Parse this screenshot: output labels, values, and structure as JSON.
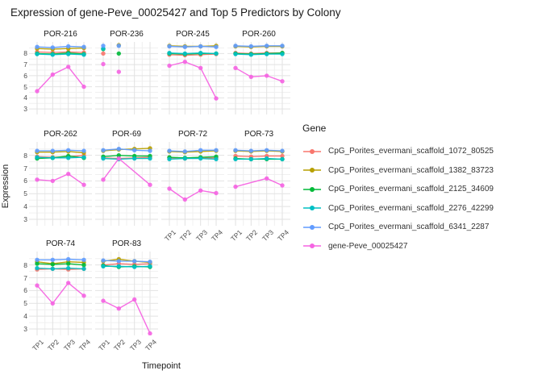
{
  "title": "Expression of gene-Peve_00025427 and Top 5 Predictors by Colony",
  "x_axis": {
    "title": "Timepoint",
    "ticks": [
      "TP1",
      "TP2",
      "TP3",
      "TP4"
    ]
  },
  "y_axis": {
    "title": "Expression",
    "ticks": [
      8,
      7,
      6,
      5,
      4,
      3
    ]
  },
  "legend": {
    "title": "Gene"
  },
  "chart_data": {
    "type": "line",
    "x": [
      "TP1",
      "TP2",
      "TP3",
      "TP4"
    ],
    "ylim": [
      2.5,
      9.05
    ],
    "y_major_gridlines": [
      3,
      4,
      5,
      6,
      7,
      8
    ],
    "grid": true,
    "legend_position": "right",
    "facet_by": "Colony",
    "series": [
      {
        "name": "CpG_Porites_evermani_scaffold_1072_80525",
        "color": "#F8766D"
      },
      {
        "name": "CpG_Porites_evermani_scaffold_1382_83723",
        "color": "#B79F00"
      },
      {
        "name": "CpG_Porites_evermani_scaffold_2125_34609",
        "color": "#00BA38"
      },
      {
        "name": "CpG_Porites_evermani_scaffold_2276_42299",
        "color": "#00BFC4"
      },
      {
        "name": "CpG_Porites_evermani_scaffold_6341_2287",
        "color": "#619CFF"
      },
      {
        "name": "gene-Peve_00025427",
        "color": "#F564E2"
      }
    ],
    "facets": [
      {
        "colony": "POR-216",
        "row": 1,
        "x_labels": false,
        "points_only": false,
        "values": {
          "CpG_Porites_evermani_scaffold_1072_80525": [
            8.15,
            8.1,
            8.15,
            8.1
          ],
          "CpG_Porites_evermani_scaffold_1382_83723": [
            8.45,
            8.4,
            8.45,
            8.5
          ],
          "CpG_Porites_evermani_scaffold_2125_34609": [
            8.0,
            7.95,
            8.05,
            7.95
          ],
          "CpG_Porites_evermani_scaffold_2276_42299": [
            7.95,
            7.9,
            7.95,
            7.9
          ],
          "CpG_Porites_evermani_scaffold_6341_2287": [
            8.6,
            8.55,
            8.65,
            8.6
          ],
          "gene-Peve_00025427": [
            4.6,
            6.1,
            6.8,
            5.0
          ]
        }
      },
      {
        "colony": "POR-236",
        "row": 1,
        "x_labels": false,
        "points_only": true,
        "values": {
          "CpG_Porites_evermani_scaffold_1072_80525": [
            8.0,
            null,
            null,
            null
          ],
          "CpG_Porites_evermani_scaffold_1382_83723": [
            null,
            8.75,
            null,
            null
          ],
          "CpG_Porites_evermani_scaffold_2125_34609": [
            8.4,
            8.0,
            null,
            null
          ],
          "CpG_Porites_evermani_scaffold_2276_42299": [
            8.45,
            null,
            null,
            null
          ],
          "CpG_Porites_evermani_scaffold_6341_2287": [
            8.7,
            8.7,
            null,
            null
          ],
          "gene-Peve_00025427": [
            7.05,
            6.35,
            null,
            null
          ]
        }
      },
      {
        "colony": "POR-245",
        "row": 1,
        "x_labels": false,
        "points_only": false,
        "values": {
          "CpG_Porites_evermani_scaffold_1072_80525": [
            7.9,
            7.85,
            7.9,
            7.95
          ],
          "CpG_Porites_evermani_scaffold_1382_83723": [
            8.7,
            8.65,
            8.65,
            8.7
          ],
          "CpG_Porites_evermani_scaffold_2125_34609": [
            8.0,
            7.95,
            8.0,
            8.0
          ],
          "CpG_Porites_evermani_scaffold_2276_42299": [
            8.05,
            8.0,
            8.05,
            8.0
          ],
          "CpG_Porites_evermani_scaffold_6341_2287": [
            8.65,
            8.6,
            8.65,
            8.6
          ],
          "gene-Peve_00025427": [
            6.9,
            7.25,
            6.7,
            3.95
          ]
        }
      },
      {
        "colony": "POR-260",
        "row": 1,
        "x_labels": false,
        "points_only": false,
        "values": {
          "CpG_Porites_evermani_scaffold_1072_80525": [
            8.05,
            8.0,
            8.05,
            8.05
          ],
          "CpG_Porites_evermani_scaffold_1382_83723": [
            8.65,
            8.6,
            8.65,
            8.65
          ],
          "CpG_Porites_evermani_scaffold_2125_34609": [
            8.0,
            7.95,
            8.0,
            8.05
          ],
          "CpG_Porites_evermani_scaffold_2276_42299": [
            7.95,
            7.9,
            7.95,
            7.95
          ],
          "CpG_Porites_evermani_scaffold_6341_2287": [
            8.7,
            8.65,
            8.7,
            8.7
          ],
          "gene-Peve_00025427": [
            6.7,
            5.9,
            6.0,
            5.5
          ]
        }
      },
      {
        "colony": "POR-262",
        "row": 2,
        "x_labels": false,
        "points_only": false,
        "values": {
          "CpG_Porites_evermani_scaffold_1072_80525": [
            7.9,
            7.85,
            7.9,
            8.0
          ],
          "CpG_Porites_evermani_scaffold_1382_83723": [
            8.25,
            8.25,
            8.3,
            8.2
          ],
          "CpG_Porites_evermani_scaffold_2125_34609": [
            7.75,
            7.8,
            7.95,
            7.8
          ],
          "CpG_Porites_evermani_scaffold_2276_42299": [
            7.85,
            7.8,
            7.8,
            7.85
          ],
          "CpG_Porites_evermani_scaffold_6341_2287": [
            8.35,
            8.35,
            8.4,
            8.35
          ],
          "gene-Peve_00025427": [
            6.1,
            6.0,
            6.55,
            5.7
          ]
        }
      },
      {
        "colony": "POR-69",
        "row": 2,
        "x_labels": false,
        "points_only": false,
        "values": {
          "CpG_Porites_evermani_scaffold_1072_80525": [
            7.8,
            7.75,
            7.8,
            7.85
          ],
          "CpG_Porites_evermani_scaffold_1382_83723": [
            8.35,
            8.45,
            8.5,
            8.55
          ],
          "CpG_Porites_evermani_scaffold_2125_34609": [
            7.9,
            8.0,
            7.95,
            7.95
          ],
          "CpG_Porites_evermani_scaffold_2276_42299": [
            7.75,
            7.7,
            7.75,
            7.75
          ],
          "CpG_Porites_evermani_scaffold_6341_2287": [
            8.4,
            8.5,
            8.4,
            8.35
          ],
          "gene-Peve_00025427": [
            6.1,
            7.75,
            null,
            5.7
          ]
        }
      },
      {
        "colony": "POR-72",
        "row": 2,
        "x_labels": true,
        "points_only": false,
        "values": {
          "CpG_Porites_evermani_scaffold_1072_80525": [
            7.8,
            7.75,
            7.8,
            7.8
          ],
          "CpG_Porites_evermani_scaffold_1382_83723": [
            8.3,
            8.25,
            8.3,
            8.35
          ],
          "CpG_Porites_evermani_scaffold_2125_34609": [
            7.85,
            7.8,
            7.85,
            7.9
          ],
          "CpG_Porites_evermani_scaffold_2276_42299": [
            7.7,
            7.75,
            7.75,
            7.7
          ],
          "CpG_Porites_evermani_scaffold_6341_2287": [
            8.35,
            8.3,
            8.4,
            8.4
          ],
          "gene-Peve_00025427": [
            5.4,
            4.55,
            5.25,
            5.05
          ]
        }
      },
      {
        "colony": "POR-73",
        "row": 2,
        "x_labels": true,
        "points_only": false,
        "values": {
          "CpG_Porites_evermani_scaffold_1072_80525": [
            7.95,
            7.9,
            7.95,
            7.95
          ],
          "CpG_Porites_evermani_scaffold_1382_83723": [
            8.35,
            8.3,
            8.35,
            8.3
          ],
          "CpG_Porites_evermani_scaffold_2125_34609": [
            7.75,
            7.7,
            7.7,
            7.7
          ],
          "CpG_Porites_evermani_scaffold_2276_42299": [
            7.7,
            7.7,
            7.75,
            7.7
          ],
          "CpG_Porites_evermani_scaffold_6341_2287": [
            8.4,
            8.35,
            8.4,
            8.35
          ],
          "gene-Peve_00025427": [
            5.55,
            null,
            6.2,
            5.65
          ]
        }
      },
      {
        "colony": "POR-74",
        "row": 3,
        "x_labels": true,
        "points_only": false,
        "values": {
          "CpG_Porites_evermani_scaffold_1072_80525": [
            7.65,
            7.7,
            7.65,
            7.7
          ],
          "CpG_Porites_evermani_scaffold_1382_83723": [
            8.25,
            8.1,
            8.25,
            8.2
          ],
          "CpG_Porites_evermani_scaffold_2125_34609": [
            8.1,
            8.05,
            8.1,
            8.0
          ],
          "CpG_Porites_evermani_scaffold_2276_42299": [
            7.75,
            7.7,
            7.75,
            7.7
          ],
          "CpG_Porites_evermani_scaffold_6341_2287": [
            8.4,
            8.4,
            8.45,
            8.4
          ],
          "gene-Peve_00025427": [
            6.4,
            5.0,
            6.6,
            5.6
          ]
        }
      },
      {
        "colony": "POR-83",
        "row": 3,
        "x_labels": true,
        "points_only": false,
        "values": {
          "CpG_Porites_evermani_scaffold_1072_80525": [
            8.0,
            8.1,
            8.05,
            8.1
          ],
          "CpG_Porites_evermani_scaffold_1382_83723": [
            8.3,
            8.45,
            8.3,
            8.2
          ],
          "CpG_Porites_evermani_scaffold_2125_34609": [
            7.95,
            7.85,
            7.9,
            7.85
          ],
          "CpG_Porites_evermani_scaffold_2276_42299": [
            7.9,
            7.9,
            7.85,
            7.9
          ],
          "CpG_Porites_evermani_scaffold_6341_2287": [
            8.35,
            8.3,
            8.3,
            8.25
          ],
          "gene-Peve_00025427": [
            5.2,
            4.6,
            5.3,
            2.65
          ]
        }
      }
    ]
  }
}
